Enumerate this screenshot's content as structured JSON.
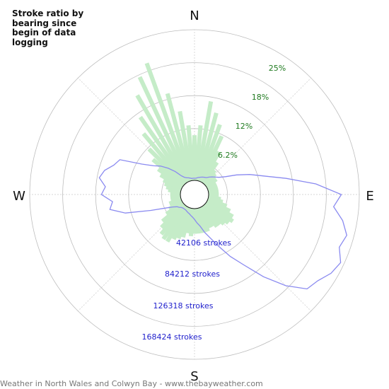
{
  "chart_data": {
    "type": "polar",
    "title": "Stroke ratio by bearing since begin of data logging",
    "compass": [
      "N",
      "E",
      "S",
      "W"
    ],
    "ratio_axis": {
      "labels": [
        "6.2%",
        "12%",
        "18%",
        "25%"
      ],
      "max": 30
    },
    "count_axis": {
      "labels": [
        "42106 strokes",
        "84212 strokes",
        "126318 strokes",
        "168424 strokes"
      ],
      "max": 210000
    },
    "series": [
      {
        "kind": "ratio-bars",
        "color": "#c5ecc8",
        "bearings": [
          0,
          5,
          10,
          15,
          20,
          25,
          30,
          35,
          40,
          45,
          50,
          55,
          60,
          65,
          70,
          75,
          80,
          85,
          90,
          95,
          100,
          105,
          110,
          115,
          120,
          125,
          130,
          135,
          140,
          145,
          150,
          155,
          160,
          165,
          170,
          175,
          180,
          185,
          190,
          195,
          200,
          205,
          210,
          215,
          220,
          225,
          230,
          235,
          240,
          245,
          250,
          255,
          260,
          265,
          270,
          275,
          280,
          285,
          290,
          295,
          300,
          305,
          310,
          315,
          320,
          325,
          330,
          335,
          340,
          345,
          350,
          355
        ],
        "values": [
          9,
          11,
          16,
          14,
          12,
          10,
          7,
          5,
          3.5,
          3,
          2.5,
          2.5,
          2,
          2,
          2,
          2,
          2,
          2,
          2,
          2,
          2.5,
          3,
          4,
          5,
          6,
          6.5,
          6,
          5.5,
          5,
          5,
          4.5,
          4.5,
          5,
          5,
          5,
          5,
          5,
          5.5,
          5,
          6,
          6.5,
          7,
          8,
          8,
          7.5,
          6.5,
          5.5,
          4,
          3,
          2.5,
          2.5,
          2,
          2,
          2,
          2,
          2,
          2.5,
          3,
          3.5,
          4,
          5,
          6,
          8,
          10,
          13,
          16,
          20,
          23,
          25,
          18,
          14,
          11
        ]
      },
      {
        "kind": "stroke-count-line",
        "color": "#8a8af0",
        "bearings": [
          0,
          5,
          10,
          15,
          20,
          25,
          30,
          35,
          40,
          45,
          50,
          55,
          60,
          65,
          70,
          75,
          80,
          85,
          90,
          95,
          100,
          105,
          110,
          115,
          120,
          125,
          130,
          135,
          140,
          145,
          150,
          155,
          160,
          165,
          170,
          175,
          180,
          185,
          190,
          195,
          200,
          205,
          210,
          215,
          220,
          225,
          230,
          235,
          240,
          245,
          250,
          255,
          260,
          265,
          270,
          275,
          280,
          285,
          290,
          295,
          300,
          305,
          310,
          315,
          320,
          325,
          330,
          335,
          340,
          345,
          350,
          355
        ],
        "values": [
          3000,
          3000,
          4000,
          5000,
          6000,
          7000,
          8000,
          9000,
          12000,
          15000,
          18000,
          22000,
          30000,
          45000,
          62000,
          80000,
          110000,
          150000,
          185000,
          175000,
          190000,
          200000,
          195000,
          205000,
          200000,
          190000,
          185000,
          160000,
          130000,
          100000,
          80000,
          60000,
          45000,
          35000,
          25000,
          20000,
          15000,
          12000,
          10000,
          8000,
          7000,
          6000,
          5000,
          5000,
          5000,
          6000,
          8000,
          10000,
          15000,
          25000,
          45000,
          80000,
          100000,
          95000,
          110000,
          105000,
          115000,
          110000,
          100000,
          95000,
          65000,
          50000,
          42000,
          32000,
          22000,
          12000,
          8000,
          6000,
          5000,
          4000,
          3000,
          3000
        ]
      }
    ]
  },
  "footer": "Weather in North Wales and Colwyn Bay - www.thebayweather.com"
}
